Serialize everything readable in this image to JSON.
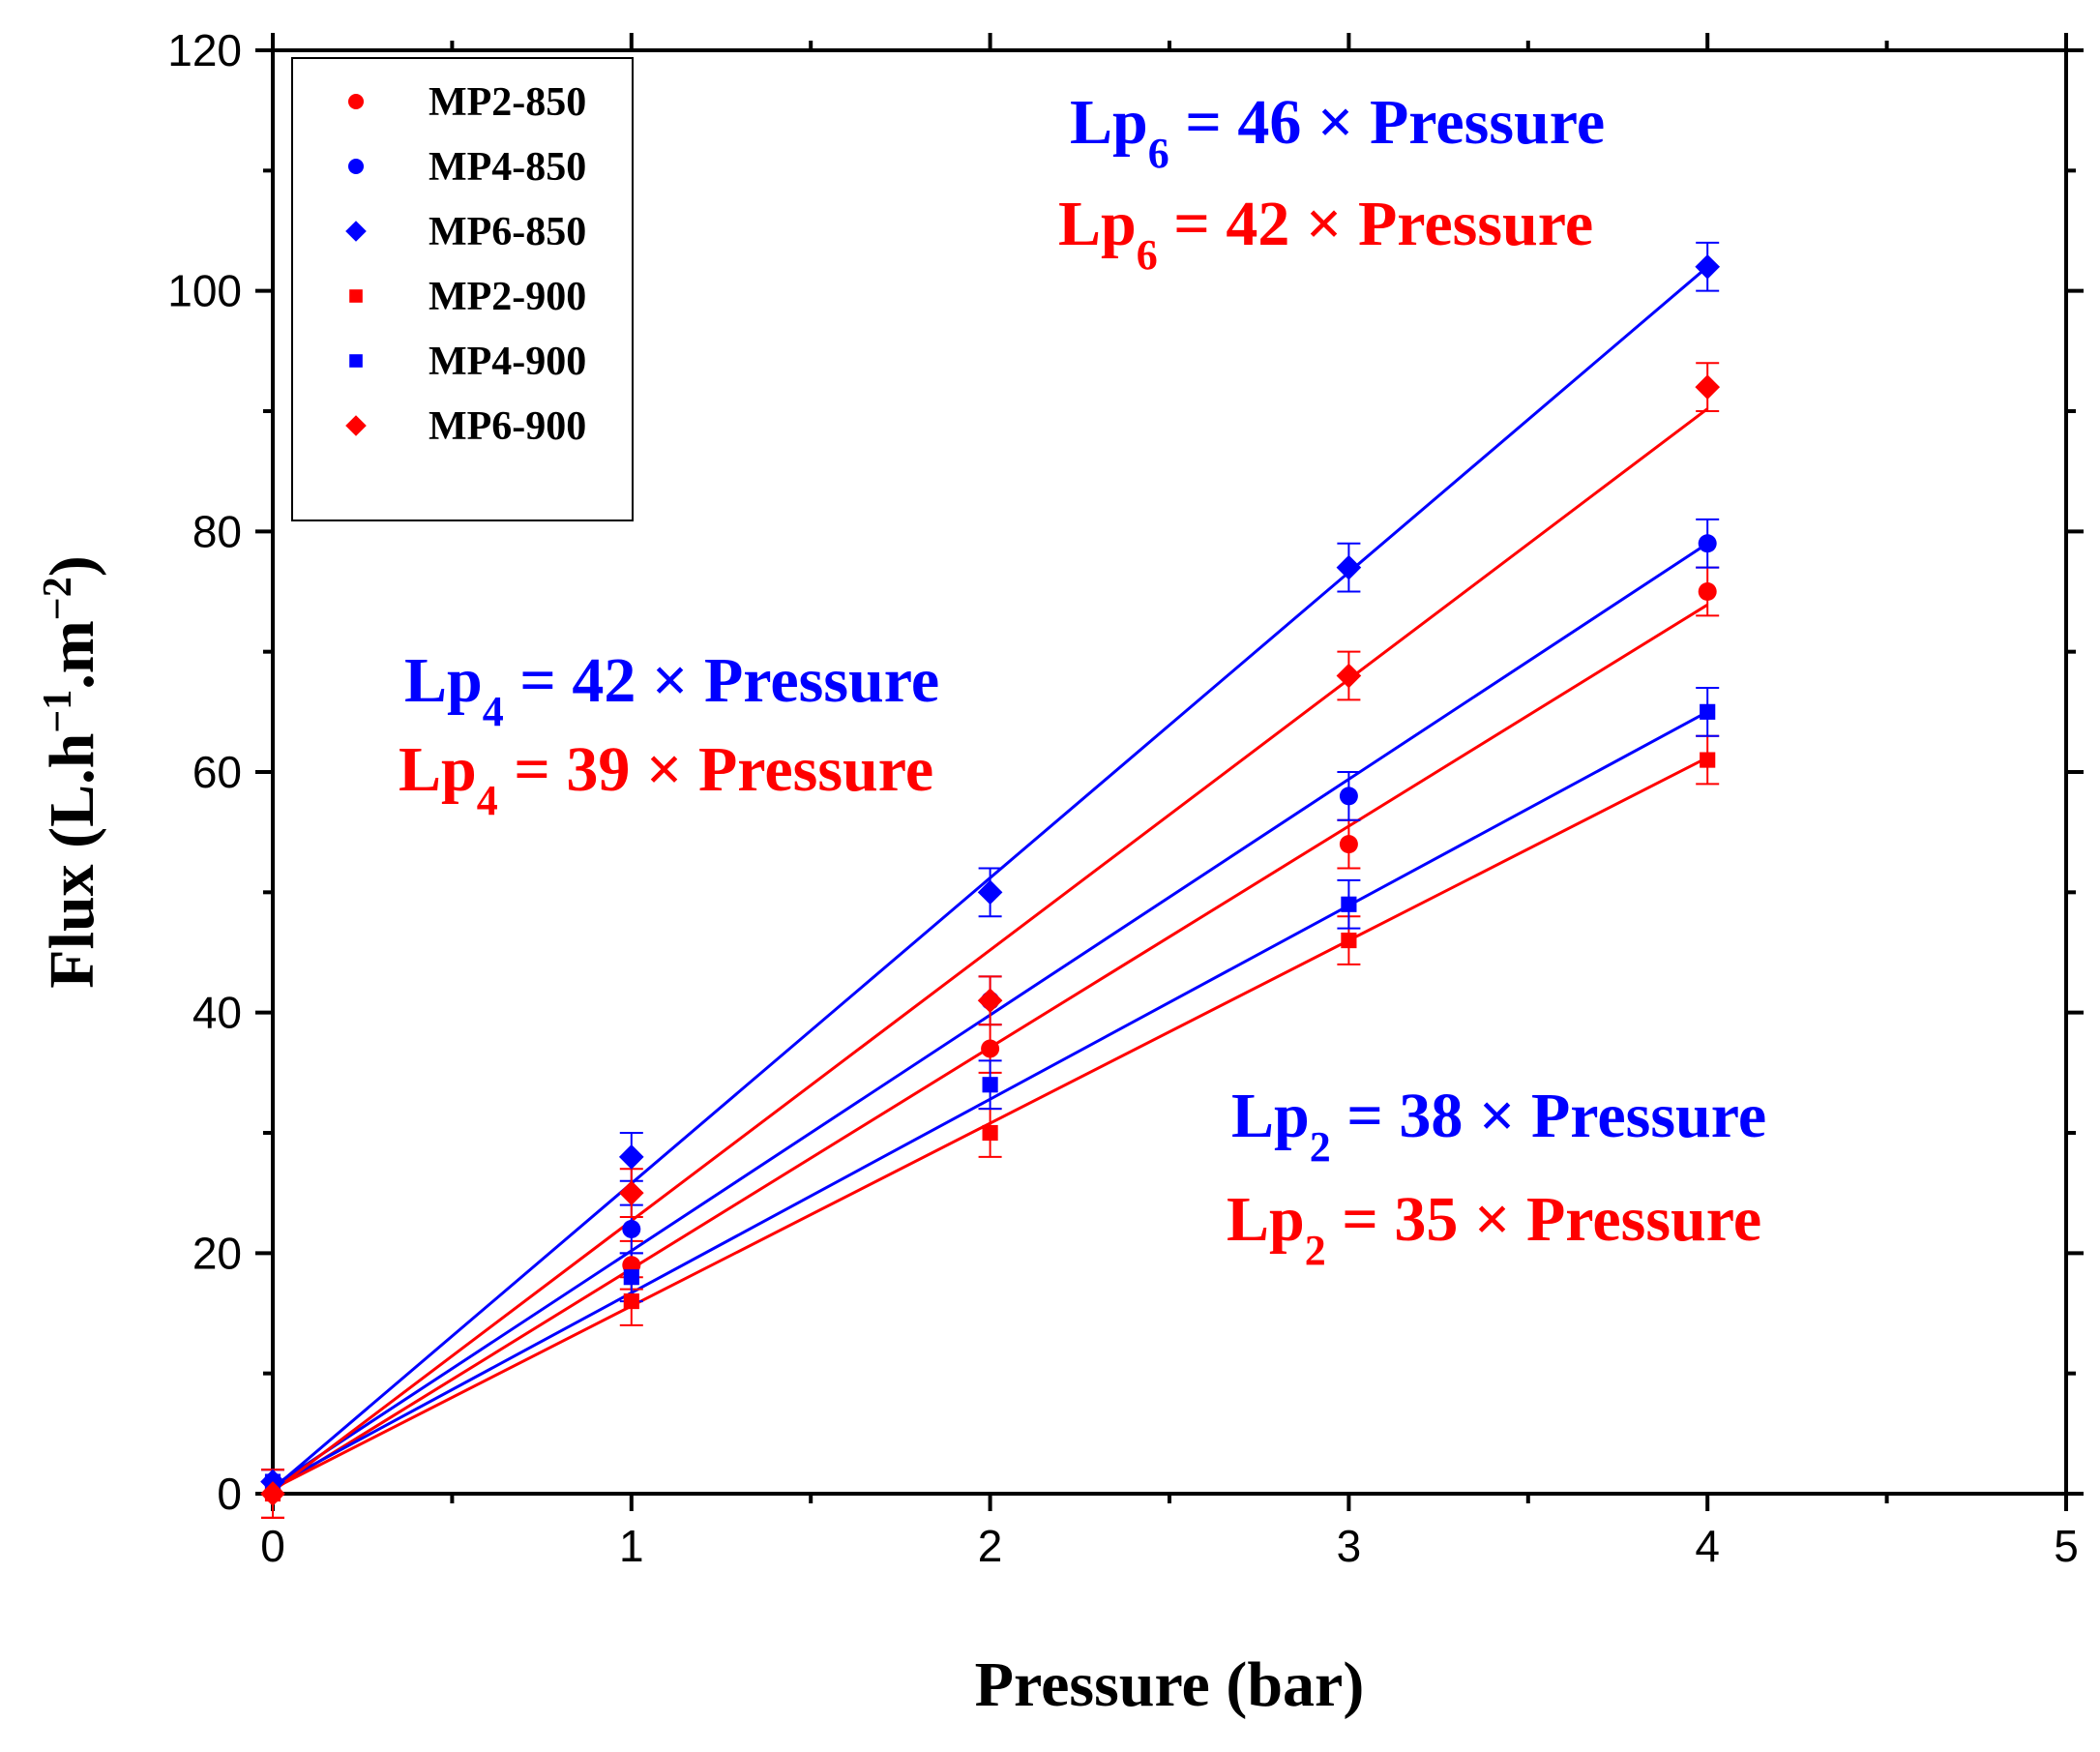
{
  "chart_data": {
    "type": "scatter",
    "xlabel": "Pressure (bar)",
    "ylabel": {
      "main": "Flux (L.h",
      "sup1": "−1",
      "mid": ".m",
      "sup2": "−2",
      "end": ")"
    },
    "xlim": [
      0,
      5
    ],
    "ylim": [
      0,
      120
    ],
    "xticks": [
      0,
      1,
      2,
      3,
      4,
      5
    ],
    "yticks": [
      0,
      20,
      40,
      60,
      80,
      100,
      120
    ],
    "grid": false,
    "legend_position": "top-left",
    "colors": {
      "red": "#ff0000",
      "blue": "#0000ff"
    },
    "x": [
      0,
      1,
      2,
      3,
      4
    ],
    "series": [
      {
        "name": "MP2-850",
        "color": "#ff0000",
        "marker": "circle",
        "values": [
          0,
          19,
          37,
          54,
          75
        ],
        "errors": [
          2,
          2,
          2,
          2,
          2
        ],
        "fit": {
          "intercept": 0.3,
          "slope": 18.4
        }
      },
      {
        "name": "MP4-850",
        "color": "#0000ff",
        "marker": "circle",
        "values": [
          1,
          22,
          41,
          58,
          79
        ],
        "errors": [
          1,
          2,
          2,
          2,
          2
        ],
        "fit": {
          "intercept": 0.6,
          "slope": 19.6
        }
      },
      {
        "name": "MP6-850",
        "color": "#0000ff",
        "marker": "diamond",
        "values": [
          1,
          28,
          50,
          77,
          102
        ],
        "errors": [
          1,
          2,
          2,
          2,
          2
        ],
        "fit": {
          "intercept": 0.4,
          "slope": 25.4
        }
      },
      {
        "name": "MP2-900",
        "color": "#ff0000",
        "marker": "square",
        "values": [
          0,
          16,
          30,
          46,
          61
        ],
        "errors": [
          2,
          2,
          2,
          2,
          2
        ],
        "fit": {
          "intercept": 0.4,
          "slope": 15.2
        }
      },
      {
        "name": "MP4-900",
        "color": "#0000ff",
        "marker": "square",
        "values": [
          1,
          18,
          34,
          49,
          65
        ],
        "errors": [
          1,
          2,
          2,
          2,
          2
        ],
        "fit": {
          "intercept": 0.6,
          "slope": 16.1
        }
      },
      {
        "name": "MP6-900",
        "color": "#ff0000",
        "marker": "diamond",
        "values": [
          0,
          25,
          41,
          68,
          92
        ],
        "errors": [
          2,
          2,
          2,
          2,
          2
        ],
        "fit": {
          "intercept": 0.2,
          "slope": 22.5
        }
      }
    ],
    "annotations": [
      {
        "id": "lp6-850",
        "color": "#0000ff",
        "base": "Lp",
        "sub": "6",
        "rest": " = 46 × Pressure"
      },
      {
        "id": "lp6-900",
        "color": "#ff0000",
        "base": "Lp",
        "sub": "6",
        "rest": " = 42 × Pressure"
      },
      {
        "id": "lp4-850",
        "color": "#0000ff",
        "base": "Lp",
        "sub": "4",
        "rest": " = 42 × Pressure"
      },
      {
        "id": "lp4-900",
        "color": "#ff0000",
        "base": "Lp",
        "sub": "4",
        "rest": " = 39 × Pressure"
      },
      {
        "id": "lp2-850",
        "color": "#0000ff",
        "base": "Lp",
        "sub": "2",
        "rest": " = 38 × Pressure"
      },
      {
        "id": "lp2-900",
        "color": "#ff0000",
        "base": "Lp",
        "sub": "2",
        "rest": " = 35 × Pressure"
      }
    ]
  }
}
